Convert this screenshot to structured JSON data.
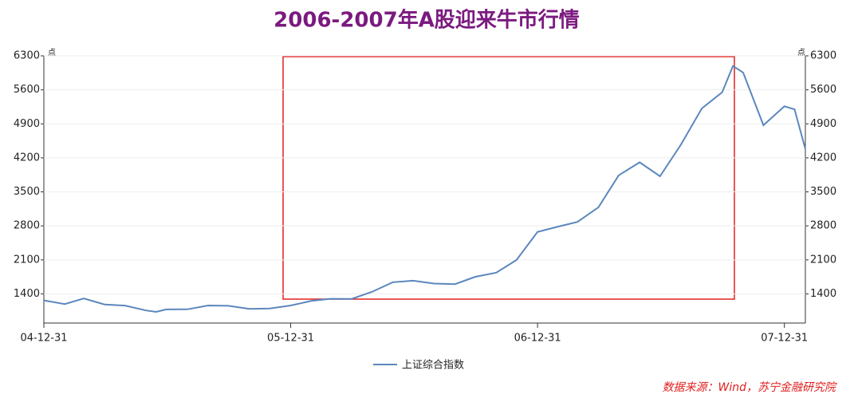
{
  "chart_data": {
    "type": "line",
    "title": "2006-2007年A股迎来牛市行情",
    "y_label": "点",
    "y2_label": "点",
    "x": [
      "04-12-31",
      "05-01-31",
      "05-02-28",
      "05-03-31",
      "05-04-30",
      "05-05-31",
      "05-06-15",
      "05-06-30",
      "05-07-31",
      "05-08-31",
      "05-09-30",
      "05-10-31",
      "05-11-30",
      "05-12-31",
      "06-01-31",
      "06-02-28",
      "06-03-31",
      "06-04-30",
      "06-05-31",
      "06-06-30",
      "06-07-31",
      "06-08-31",
      "06-09-30",
      "06-10-31",
      "06-11-30",
      "06-12-31",
      "07-01-31",
      "07-02-28",
      "07-03-31",
      "07-04-30",
      "07-05-31",
      "07-06-30",
      "07-07-31",
      "07-08-31",
      "07-09-30",
      "07-10-16",
      "07-10-31",
      "07-11-30",
      "07-12-31",
      "08-01-15",
      "08-01-31"
    ],
    "series": [
      {
        "name": "上证综合指数",
        "color": "#5b87bd",
        "values": [
          1266,
          1191,
          1306,
          1181,
          1159,
          1060,
          1030,
          1080,
          1083,
          1162,
          1155,
          1092,
          1099,
          1161,
          1258,
          1299,
          1298,
          1440,
          1641,
          1672,
          1612,
          1601,
          1752,
          1837,
          2099,
          2675,
          2786,
          2881,
          3183,
          3841,
          4109,
          3821,
          4471,
          5218,
          5552,
          6092,
          5955,
          4871,
          5261,
          5200,
          4383
        ]
      }
    ],
    "xlim": [
      "04-12-31",
      "08-01-31"
    ],
    "xticks": [
      "04-12-31",
      "05-12-31",
      "06-12-31",
      "07-12-31"
    ],
    "ylim": [
      800,
      6300
    ],
    "yticks": [
      1400,
      2100,
      2800,
      3500,
      4200,
      4900,
      5600,
      6300
    ],
    "y2lim": [
      800,
      6300
    ],
    "y2ticks": [
      1400,
      2100,
      2800,
      3500,
      4200,
      4900,
      5600,
      6300
    ],
    "grid": true,
    "source": "数据来源：Wind，苏宁金融研究院"
  }
}
